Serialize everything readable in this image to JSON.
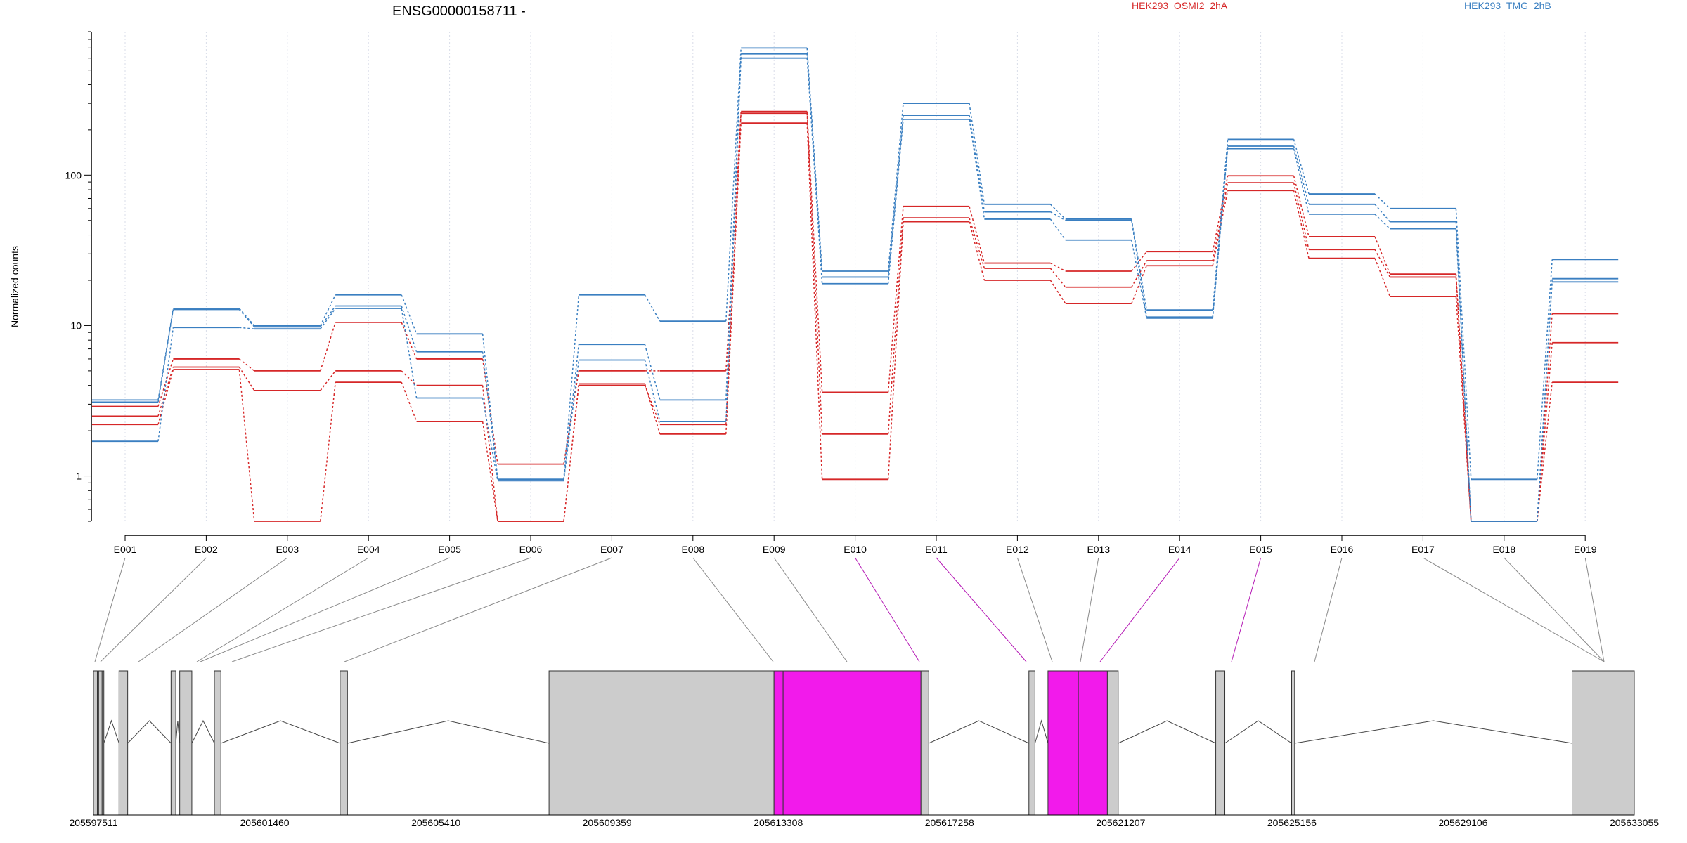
{
  "chart_data": {
    "type": "line",
    "title": "ENSG00000158711 -",
    "ylabel": "Normalized counts",
    "xlabel": "",
    "y_scale": "log10",
    "ylim": [
      0.5,
      900
    ],
    "y_ticks": [
      1,
      10,
      100
    ],
    "y_tick_labels": [
      "1",
      "10",
      "100"
    ],
    "grid": "vertical dotted lines at each exon",
    "legend_placement": "top-right",
    "categories": [
      "E001",
      "E002",
      "E003",
      "E004",
      "E005",
      "E006",
      "E007",
      "E008",
      "E009",
      "E010",
      "E011",
      "E012",
      "E013",
      "E014",
      "E015",
      "E016",
      "E017",
      "E018",
      "E019"
    ],
    "series": [
      {
        "name": "HEK293_OSMI2_2hA",
        "group": "HEK293_OSMI2_2hA",
        "color": "#d62728",
        "values": [
          2.9,
          6.0,
          5.0,
          10.5,
          6.0,
          1.2,
          5.0,
          5.0,
          265,
          3.6,
          62,
          26,
          23,
          31,
          99,
          39,
          22,
          0.5,
          12
        ]
      },
      {
        "group": "HEK293_OSMI2_2hA",
        "color": "#d62728",
        "values": [
          2.5,
          5.3,
          3.7,
          5.0,
          4.0,
          0.5,
          4.0,
          2.2,
          258,
          1.9,
          52,
          24,
          18,
          27,
          89,
          32,
          21,
          0.5,
          7.7
        ]
      },
      {
        "group": "HEK293_OSMI2_2hA",
        "color": "#d62728",
        "values": [
          2.2,
          5.1,
          0.5,
          4.2,
          2.3,
          0.5,
          4.1,
          1.9,
          222,
          0.95,
          49,
          20,
          14,
          25,
          79,
          28,
          15.6,
          0.5,
          4.2
        ]
      },
      {
        "name": "HEK293_TMG_2hB",
        "group": "HEK293_TMG_2hB",
        "color": "#3a7fc1",
        "values": [
          3.2,
          13.0,
          10.0,
          16.0,
          8.8,
          0.95,
          16.0,
          10.7,
          700,
          23,
          300,
          64,
          51,
          12.7,
          173,
          75,
          60,
          0.95,
          27.5
        ]
      },
      {
        "group": "HEK293_TMG_2hB",
        "color": "#3a7fc1",
        "values": [
          3.1,
          12.8,
          9.8,
          13.5,
          6.7,
          0.95,
          7.5,
          3.2,
          640,
          21,
          250,
          57,
          50,
          11.4,
          156,
          64,
          49,
          0.5,
          20.5
        ]
      },
      {
        "group": "HEK293_TMG_2hB",
        "color": "#3a7fc1",
        "values": [
          1.7,
          9.7,
          9.5,
          13.0,
          3.3,
          0.93,
          5.9,
          2.3,
          600,
          19,
          235,
          51,
          37,
          11.2,
          150,
          55,
          44,
          0.5,
          19.5
        ]
      }
    ],
    "genomic_axis": {
      "start": 205597511,
      "end": 205633055,
      "tick_labels": [
        "205597511",
        "205601460",
        "205605410",
        "205609359",
        "205613308",
        "205617258",
        "205621207",
        "205625156",
        "205629106",
        "205633055"
      ]
    },
    "exon_highlight_color": "#f21aeb",
    "exon_default_color": "#cccccc",
    "highlighted_exons": [
      "E010",
      "E011",
      "E014",
      "E015"
    ]
  }
}
